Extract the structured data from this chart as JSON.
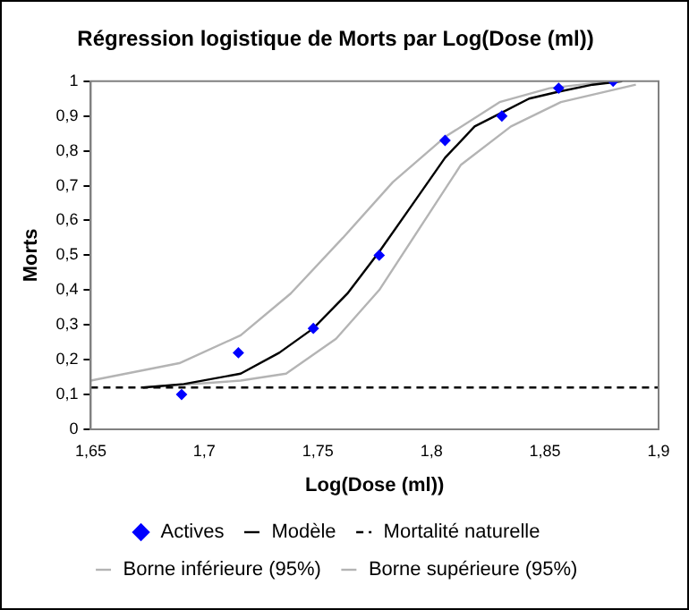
{
  "chart_data": {
    "type": "scatter",
    "title": "Régression logistique de Morts par Log(Dose (ml))",
    "xlabel": "Log(Dose (ml))",
    "ylabel": "Morts",
    "xlim": [
      1.65,
      1.9
    ],
    "xticks": [
      {
        "value": 1.65,
        "label": "1,65"
      },
      {
        "value": 1.7,
        "label": "1,7"
      },
      {
        "value": 1.75,
        "label": "1,75"
      },
      {
        "value": 1.8,
        "label": "1,8"
      },
      {
        "value": 1.85,
        "label": "1,85"
      },
      {
        "value": 1.9,
        "label": "1,9"
      }
    ],
    "ylim": [
      0,
      1
    ],
    "yticks": [
      0,
      {
        "value": 0.1,
        "label": "0,1"
      },
      {
        "value": 0.2,
        "label": "0,2"
      },
      {
        "value": 0.3,
        "label": "0,3"
      },
      {
        "value": 0.4,
        "label": "0,4"
      },
      {
        "value": 0.5,
        "label": "0,5"
      },
      {
        "value": 0.6,
        "label": "0,6"
      },
      {
        "value": 0.7,
        "label": "0,7"
      },
      {
        "value": 0.8,
        "label": "0,8"
      },
      {
        "value": 0.9,
        "label": "0,9"
      },
      1
    ],
    "grid": false,
    "legend": "bottom",
    "series": [
      {
        "name": "Actives",
        "type": "scatter",
        "marker": "diamond",
        "color": "#0000ff",
        "x": [
          1.69,
          1.715,
          1.748,
          1.777,
          1.806,
          1.831,
          1.856,
          1.88
        ],
        "values": [
          0.1,
          0.22,
          0.29,
          0.5,
          0.83,
          0.9,
          0.98,
          1.0
        ]
      },
      {
        "name": "Modèle",
        "type": "line",
        "marker": "none",
        "line_style": "solid",
        "color": "#000000",
        "x": [
          1.673,
          1.691,
          1.716,
          1.733,
          1.748,
          1.763,
          1.777,
          1.791,
          1.806,
          1.819,
          1.831,
          1.843,
          1.856,
          1.871,
          1.884
        ],
        "values": [
          0.12,
          0.13,
          0.16,
          0.22,
          0.29,
          0.39,
          0.51,
          0.64,
          0.78,
          0.87,
          0.91,
          0.95,
          0.97,
          0.99,
          1.0
        ]
      },
      {
        "name": "Mortalité naturelle",
        "type": "line",
        "marker": "none",
        "line_style": "dashed",
        "color": "#000000",
        "x": [
          1.65,
          1.9
        ],
        "values": [
          0.12,
          0.12
        ]
      },
      {
        "name": "Borne inférieure (95%)",
        "type": "line",
        "marker": "none",
        "line_style": "solid",
        "color": "#b4b4b4",
        "x": [
          1.673,
          1.716,
          1.736,
          1.758,
          1.777,
          1.796,
          1.813,
          1.835,
          1.857,
          1.89
        ],
        "values": [
          0.12,
          0.14,
          0.16,
          0.26,
          0.4,
          0.59,
          0.76,
          0.87,
          0.94,
          0.99
        ]
      },
      {
        "name": "Borne supérieure (95%)",
        "type": "line",
        "marker": "none",
        "line_style": "solid",
        "color": "#b4b4b4",
        "x": [
          1.65,
          1.689,
          1.716,
          1.738,
          1.761,
          1.783,
          1.806,
          1.83,
          1.852,
          1.879
        ],
        "values": [
          0.14,
          0.19,
          0.27,
          0.39,
          0.55,
          0.71,
          0.84,
          0.94,
          0.98,
          1.0
        ]
      }
    ]
  }
}
